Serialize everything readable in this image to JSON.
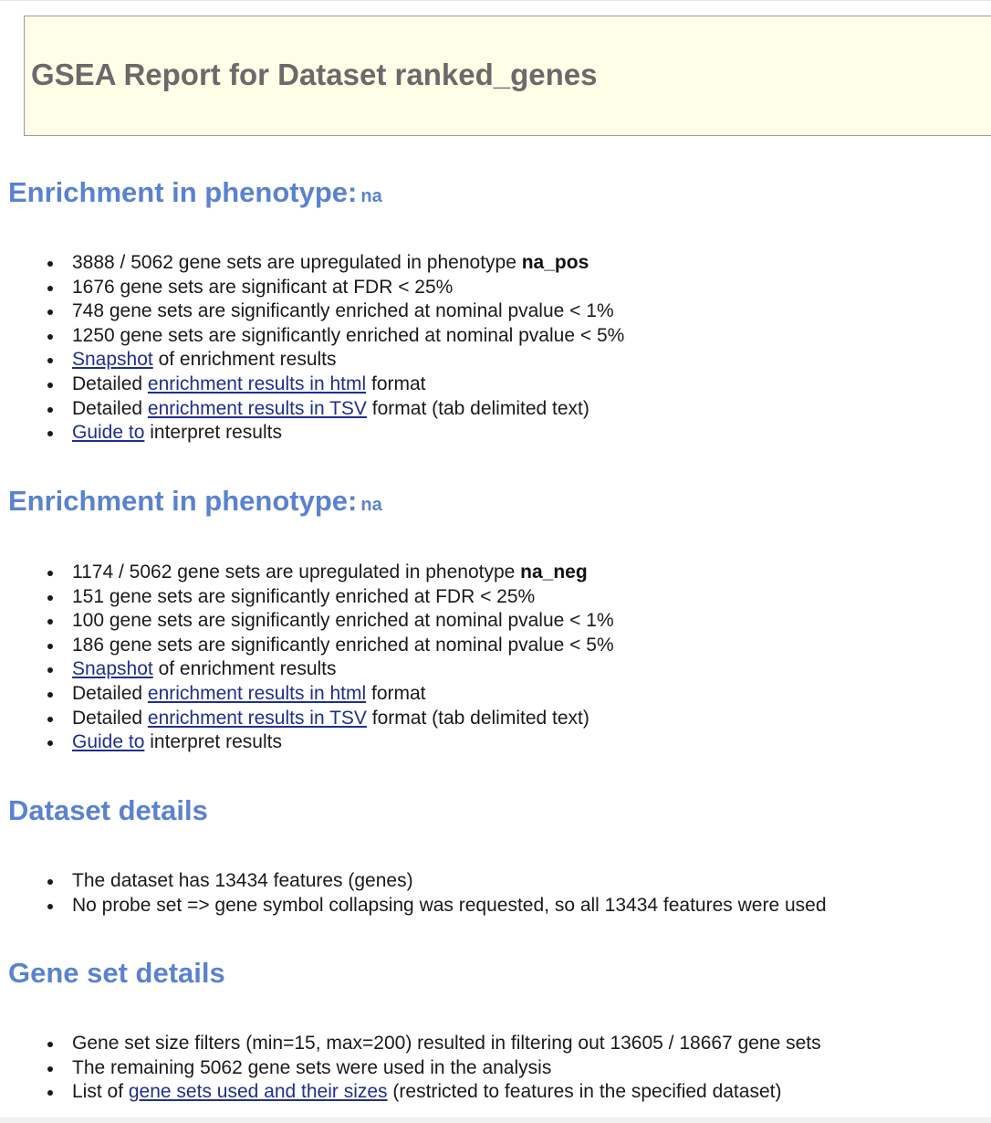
{
  "header": {
    "title": "GSEA Report for Dataset ranked_genes"
  },
  "section_pos": {
    "heading": "Enrichment in phenotype:",
    "phenotype": "na",
    "upregulated_text": "3888 / 5062 gene sets are upregulated in phenotype ",
    "upregulated_label": "na_pos",
    "fdr_text": "1676 gene sets are significant at FDR < 25%",
    "p1_text": "748 gene sets are significantly enriched at nominal pvalue < 1%",
    "p5_text": "1250 gene sets are significantly enriched at nominal pvalue < 5%",
    "snapshot_link": "Snapshot",
    "snapshot_suffix": " of enrichment results",
    "html_prefix": "Detailed ",
    "html_link": "enrichment results in html",
    "html_suffix": " format",
    "tsv_prefix": "Detailed ",
    "tsv_link": "enrichment results in TSV",
    "tsv_suffix": " format (tab delimited text)",
    "guide_link": "Guide to",
    "guide_suffix": " interpret results"
  },
  "section_neg": {
    "heading": "Enrichment in phenotype:",
    "phenotype": "na",
    "upregulated_text": "1174 / 5062 gene sets are upregulated in phenotype ",
    "upregulated_label": "na_neg",
    "fdr_text": "151 gene sets are significantly enriched at FDR < 25%",
    "p1_text": "100 gene sets are significantly enriched at nominal pvalue < 1%",
    "p5_text": "186 gene sets are significantly enriched at nominal pvalue < 5%",
    "snapshot_link": "Snapshot",
    "snapshot_suffix": " of enrichment results",
    "html_prefix": "Detailed ",
    "html_link": "enrichment results in html",
    "html_suffix": " format",
    "tsv_prefix": "Detailed ",
    "tsv_link": "enrichment results in TSV",
    "tsv_suffix": " format (tab delimited text)",
    "guide_link": "Guide to",
    "guide_suffix": " interpret results"
  },
  "dataset": {
    "heading": "Dataset details",
    "features_text": "The dataset has 13434 features (genes)",
    "collapse_text": "No probe set => gene symbol collapsing was requested, so all 13434 features were used"
  },
  "genesets": {
    "heading": "Gene set details",
    "filter_text": "Gene set size filters (min=15, max=200) resulted in filtering out 13605 / 18667 gene sets",
    "remaining_text": "The remaining 5062 gene sets were used in the analysis",
    "list_prefix": "List of ",
    "list_link": "gene sets used and their sizes",
    "list_suffix": " (restricted to features in the specified dataset)"
  }
}
